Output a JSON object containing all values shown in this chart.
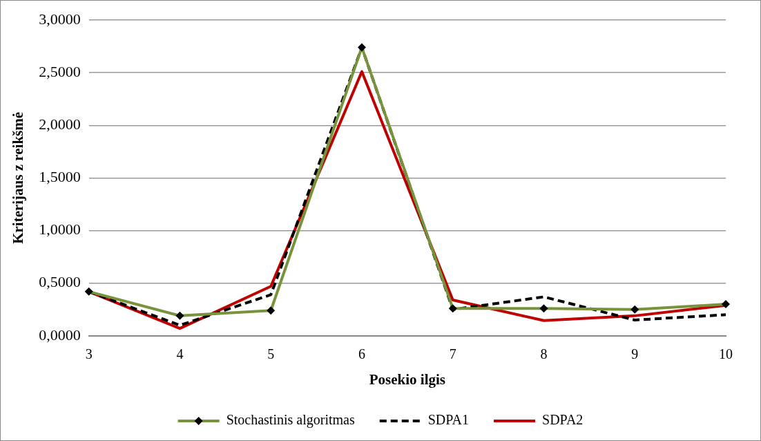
{
  "chart_data": {
    "type": "line",
    "xlabel": "Posekio ilgis",
    "ylabel": "Kriterijaus z reikšmė",
    "categories": [
      "3",
      "4",
      "5",
      "6",
      "7",
      "8",
      "9",
      "10"
    ],
    "series": [
      {
        "name": "Stochastinis algoritmas",
        "color": "#77933c",
        "marker": "diamond",
        "line_style": "solid",
        "values": [
          0.42,
          0.19,
          0.24,
          2.74,
          0.26,
          0.26,
          0.25,
          0.3
        ]
      },
      {
        "name": "SDPA1",
        "color": "#000000",
        "marker": "none",
        "line_style": "dashed",
        "values": [
          0.42,
          0.1,
          0.39,
          2.74,
          0.25,
          0.37,
          0.15,
          0.2
        ]
      },
      {
        "name": "SDPA2",
        "color": "#c00000",
        "marker": "none",
        "line_style": "solid",
        "values": [
          0.42,
          0.07,
          0.47,
          2.51,
          0.34,
          0.145,
          0.19,
          0.29
        ]
      }
    ],
    "ylim": [
      0,
      3
    ],
    "yticks": [
      {
        "value": 0,
        "label": "0,0000"
      },
      {
        "value": 0.5,
        "label": "0,5000"
      },
      {
        "value": 1,
        "label": "1,0000"
      },
      {
        "value": 1.5,
        "label": "1,5000"
      },
      {
        "value": 2,
        "label": "2,0000"
      },
      {
        "value": 2.5,
        "label": "2,5000"
      },
      {
        "value": 3,
        "label": "3,0000"
      }
    ],
    "grid": "y",
    "legend": "bottom"
  }
}
